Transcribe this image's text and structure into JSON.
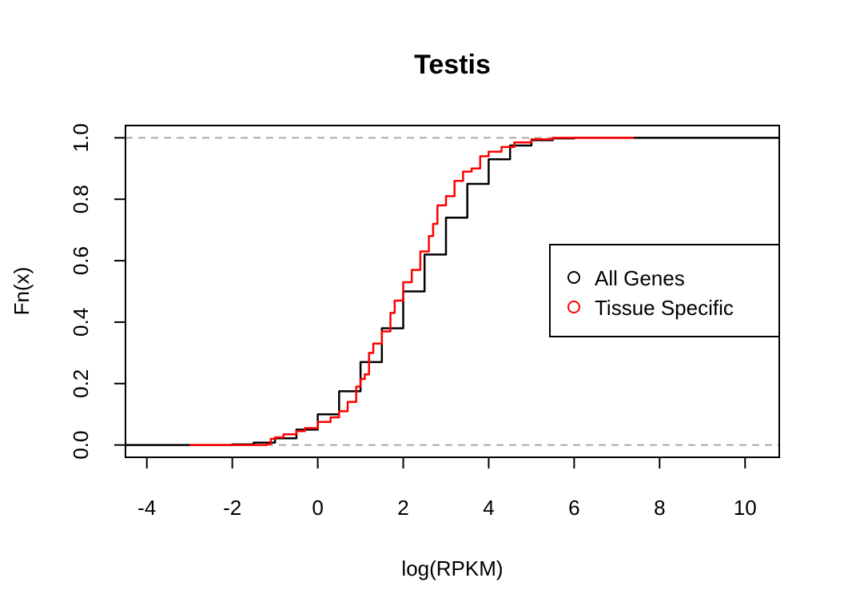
{
  "chart_data": {
    "type": "line",
    "title": "Testis",
    "xlabel": "log(RPKM)",
    "ylabel": "Fn(x)",
    "xlim": [
      -4.5,
      10.8
    ],
    "ylim": [
      -0.04,
      1.04
    ],
    "x_ticks": [
      -4,
      -2,
      0,
      2,
      4,
      6,
      8,
      10
    ],
    "x_tick_labels": [
      "-4",
      "-2",
      "0",
      "2",
      "4",
      "6",
      "8",
      "10"
    ],
    "y_ticks": [
      0,
      0.2,
      0.4,
      0.6,
      0.8,
      1
    ],
    "y_tick_labels": [
      "0.0",
      "0.2",
      "0.4",
      "0.6",
      "0.8",
      "1.0"
    ],
    "reference_lines": [
      0,
      1
    ],
    "grid": false,
    "legend_position": "right",
    "series": [
      {
        "name": "All Genes",
        "color": "#000000",
        "points": [
          [
            -4.5,
            0.0
          ],
          [
            -3.5,
            0.0
          ],
          [
            -2.5,
            0.0
          ],
          [
            -2.0,
            0.002
          ],
          [
            -1.5,
            0.008
          ],
          [
            -1.0,
            0.022
          ],
          [
            -0.5,
            0.05
          ],
          [
            0.0,
            0.1
          ],
          [
            0.5,
            0.175
          ],
          [
            1.0,
            0.27
          ],
          [
            1.5,
            0.38
          ],
          [
            2.0,
            0.5
          ],
          [
            2.5,
            0.62
          ],
          [
            3.0,
            0.74
          ],
          [
            3.5,
            0.85
          ],
          [
            4.0,
            0.93
          ],
          [
            4.5,
            0.975
          ],
          [
            5.0,
            0.992
          ],
          [
            5.5,
            0.998
          ],
          [
            6.0,
            1.0
          ],
          [
            8.0,
            1.0
          ],
          [
            10.8,
            1.0
          ]
        ]
      },
      {
        "name": "Tissue Specific",
        "color": "#ff0000",
        "points": [
          [
            -3.0,
            0.0
          ],
          [
            -2.0,
            0.0
          ],
          [
            -1.5,
            0.0
          ],
          [
            -1.2,
            0.003
          ],
          [
            -1.1,
            0.02
          ],
          [
            -1.0,
            0.025
          ],
          [
            -0.8,
            0.035
          ],
          [
            -0.5,
            0.045
          ],
          [
            -0.3,
            0.055
          ],
          [
            0.0,
            0.075
          ],
          [
            0.3,
            0.09
          ],
          [
            0.5,
            0.11
          ],
          [
            0.7,
            0.14
          ],
          [
            0.9,
            0.19
          ],
          [
            1.0,
            0.215
          ],
          [
            1.1,
            0.23
          ],
          [
            1.2,
            0.3
          ],
          [
            1.3,
            0.33
          ],
          [
            1.5,
            0.37
          ],
          [
            1.7,
            0.43
          ],
          [
            1.8,
            0.47
          ],
          [
            2.0,
            0.53
          ],
          [
            2.2,
            0.57
          ],
          [
            2.4,
            0.63
          ],
          [
            2.6,
            0.68
          ],
          [
            2.7,
            0.72
          ],
          [
            2.8,
            0.78
          ],
          [
            3.0,
            0.81
          ],
          [
            3.2,
            0.86
          ],
          [
            3.4,
            0.89
          ],
          [
            3.6,
            0.9
          ],
          [
            3.8,
            0.94
          ],
          [
            4.0,
            0.955
          ],
          [
            4.3,
            0.97
          ],
          [
            4.6,
            0.985
          ],
          [
            5.0,
            0.995
          ],
          [
            5.5,
            1.0
          ],
          [
            7.4,
            1.0
          ]
        ]
      }
    ]
  }
}
